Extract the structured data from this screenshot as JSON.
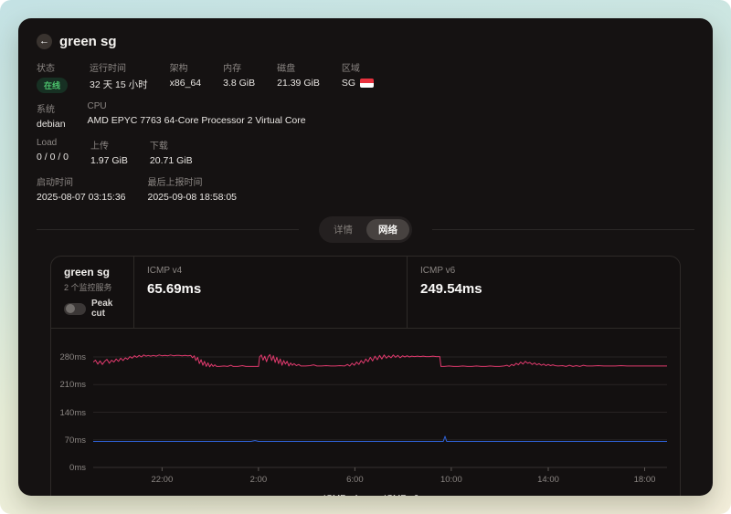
{
  "header": {
    "title": "green sg",
    "back_icon": "←"
  },
  "info_rows": [
    [
      {
        "label": "状态",
        "value": "在线",
        "kind": "badge"
      },
      {
        "label": "运行时间",
        "value": "32 天 15 小时"
      },
      {
        "label": "架构",
        "value": "x86_64"
      },
      {
        "label": "内存",
        "value": "3.8 GiB"
      },
      {
        "label": "磁盘",
        "value": "21.39 GiB"
      },
      {
        "label": "区域",
        "value": "SG",
        "kind": "flag"
      }
    ],
    [
      {
        "label": "系统",
        "value": "debian"
      },
      {
        "label": "CPU",
        "value": "AMD EPYC 7763 64-Core Processor 2 Virtual Core"
      }
    ],
    [
      {
        "label": "Load",
        "value": "0 / 0 / 0"
      },
      {
        "label": "上传",
        "value": "1.97 GiB"
      },
      {
        "label": "下载",
        "value": "20.71 GiB"
      }
    ],
    [
      {
        "label": "启动时间",
        "value": "2025-08-07 03:15:36"
      },
      {
        "label": "最后上报时间",
        "value": "2025-09-08 18:58:05"
      }
    ]
  ],
  "tabs": [
    {
      "label": "详情",
      "active": false
    },
    {
      "label": "网络",
      "active": true
    }
  ],
  "monitor": {
    "name": "green sg",
    "subtitle": "2 个监控服务",
    "peak_label": "Peak cut",
    "peak_on": false,
    "services": [
      {
        "name": "ICMP v4",
        "latency": "65.69ms"
      },
      {
        "name": "ICMP v6",
        "latency": "249.54ms"
      }
    ]
  },
  "chart_data": {
    "type": "line",
    "unit": "ms",
    "grid": true,
    "legend_position": "bottom-center",
    "y_ticks": [
      {
        "label": "0ms",
        "ms": 0
      },
      {
        "label": "70ms",
        "ms": 70
      },
      {
        "label": "140ms",
        "ms": 140
      },
      {
        "label": "210ms",
        "ms": 210
      },
      {
        "label": "280ms",
        "ms": 280
      }
    ],
    "y_top_ms": 315,
    "x_ticks": [
      {
        "label": "22:00",
        "x": 12.0
      },
      {
        "label": "2:00",
        "x": 28.8
      },
      {
        "label": "6:00",
        "x": 45.6
      },
      {
        "label": "10:00",
        "x": 62.4
      },
      {
        "label": "14:00",
        "x": 79.3
      },
      {
        "label": "18:00",
        "x": 96.1
      }
    ],
    "series": [
      {
        "name": "ICMP v4",
        "color": "#2e62d9",
        "avg_label": "65.69ms",
        "points": [
          [
            0,
            66
          ],
          [
            5,
            66
          ],
          [
            10,
            66
          ],
          [
            15,
            66
          ],
          [
            20,
            66
          ],
          [
            25,
            66
          ],
          [
            27.5,
            66
          ],
          [
            28.2,
            68
          ],
          [
            28.8,
            66
          ],
          [
            35,
            66
          ],
          [
            40,
            66
          ],
          [
            45,
            66
          ],
          [
            50,
            66
          ],
          [
            55,
            66
          ],
          [
            60,
            66
          ],
          [
            61,
            66
          ],
          [
            61.3,
            79
          ],
          [
            61.6,
            66
          ],
          [
            65,
            66
          ],
          [
            70,
            66
          ],
          [
            75,
            66
          ],
          [
            80,
            66
          ],
          [
            85,
            66
          ],
          [
            90,
            66
          ],
          [
            95,
            66
          ],
          [
            100,
            66
          ]
        ]
      },
      {
        "name": "ICMP v6",
        "color": "#e13a6e",
        "avg_label": "249.54ms",
        "points": [
          [
            0,
            267
          ],
          [
            0.4,
            272
          ],
          [
            0.8,
            262
          ],
          [
            1.2,
            270
          ],
          [
            1.6,
            261
          ],
          [
            2,
            269
          ],
          [
            2.4,
            274
          ],
          [
            2.8,
            264
          ],
          [
            3.2,
            272
          ],
          [
            3.6,
            267
          ],
          [
            4,
            275
          ],
          [
            4.4,
            269
          ],
          [
            4.8,
            277
          ],
          [
            5.2,
            271
          ],
          [
            5.6,
            278
          ],
          [
            6,
            274
          ],
          [
            6.4,
            281
          ],
          [
            6.8,
            277
          ],
          [
            7.2,
            283
          ],
          [
            7.6,
            279
          ],
          [
            8,
            284
          ],
          [
            8.4,
            280
          ],
          [
            8.8,
            285
          ],
          [
            9.2,
            282
          ],
          [
            9.6,
            284
          ],
          [
            10,
            282
          ],
          [
            10.5,
            284
          ],
          [
            11,
            282
          ],
          [
            11.5,
            285
          ],
          [
            12,
            283
          ],
          [
            12.5,
            284
          ],
          [
            13,
            283
          ],
          [
            13.5,
            285
          ],
          [
            14,
            283
          ],
          [
            14.5,
            284
          ],
          [
            15,
            284
          ],
          [
            15.5,
            283
          ],
          [
            16,
            284
          ],
          [
            16.5,
            283
          ],
          [
            17,
            284
          ],
          [
            17.3,
            278
          ],
          [
            17.6,
            283
          ],
          [
            17.9,
            271
          ],
          [
            18.2,
            279
          ],
          [
            18.5,
            263
          ],
          [
            18.8,
            273
          ],
          [
            19.1,
            259
          ],
          [
            19.4,
            269
          ],
          [
            19.7,
            256
          ],
          [
            20,
            265
          ],
          [
            20.3,
            255
          ],
          [
            20.6,
            262
          ],
          [
            20.9,
            256
          ],
          [
            21.2,
            260
          ],
          [
            21.5,
            256
          ],
          [
            22,
            256
          ],
          [
            22.8,
            257
          ],
          [
            23.4,
            256
          ],
          [
            24,
            259
          ],
          [
            24.4,
            256
          ],
          [
            25.2,
            256
          ],
          [
            26,
            258
          ],
          [
            26.6,
            256
          ],
          [
            27.4,
            256
          ],
          [
            28.2,
            256
          ],
          [
            28.8,
            256
          ],
          [
            29,
            280
          ],
          [
            29.3,
            285
          ],
          [
            29.6,
            272
          ],
          [
            29.9,
            282
          ],
          [
            30.2,
            268
          ],
          [
            30.5,
            281
          ],
          [
            30.8,
            286
          ],
          [
            31.1,
            271
          ],
          [
            31.4,
            283
          ],
          [
            31.7,
            266
          ],
          [
            32,
            279
          ],
          [
            32.3,
            263
          ],
          [
            32.6,
            275
          ],
          [
            32.9,
            259
          ],
          [
            33.2,
            271
          ],
          [
            33.5,
            262
          ],
          [
            33.8,
            269
          ],
          [
            34.1,
            257
          ],
          [
            34.4,
            265
          ],
          [
            34.7,
            259
          ],
          [
            35,
            263
          ],
          [
            35.4,
            258
          ],
          [
            35.8,
            261
          ],
          [
            36.2,
            257
          ],
          [
            37,
            257
          ],
          [
            37.8,
            258
          ],
          [
            38.4,
            260
          ],
          [
            39,
            257
          ],
          [
            39.8,
            257
          ],
          [
            40.6,
            258
          ],
          [
            41.4,
            257
          ],
          [
            42.2,
            257
          ],
          [
            43,
            258
          ],
          [
            43.8,
            257
          ],
          [
            44.3,
            261
          ],
          [
            44.7,
            257
          ],
          [
            45.1,
            264
          ],
          [
            45.5,
            259
          ],
          [
            45.9,
            267
          ],
          [
            46.3,
            261
          ],
          [
            46.7,
            271
          ],
          [
            47.1,
            264
          ],
          [
            47.5,
            275
          ],
          [
            47.9,
            268
          ],
          [
            48.3,
            279
          ],
          [
            48.7,
            270
          ],
          [
            49.1,
            282
          ],
          [
            49.5,
            273
          ],
          [
            49.9,
            284
          ],
          [
            50.3,
            275
          ],
          [
            50.7,
            285
          ],
          [
            51.1,
            277
          ],
          [
            51.5,
            283
          ],
          [
            51.9,
            278
          ],
          [
            52.3,
            285
          ],
          [
            52.7,
            279
          ],
          [
            53.1,
            284
          ],
          [
            53.5,
            278
          ],
          [
            53.9,
            283
          ],
          [
            54.3,
            280
          ],
          [
            54.7,
            283
          ],
          [
            55.1,
            280
          ],
          [
            55.5,
            282
          ],
          [
            56,
            281
          ],
          [
            56.5,
            282
          ],
          [
            57,
            281
          ],
          [
            57.5,
            282
          ],
          [
            58,
            281
          ],
          [
            58.6,
            281
          ],
          [
            59.2,
            282
          ],
          [
            59.8,
            281
          ],
          [
            60.4,
            281
          ],
          [
            60.6,
            256
          ],
          [
            61.2,
            256
          ],
          [
            62,
            257
          ],
          [
            62.8,
            256
          ],
          [
            63.6,
            256
          ],
          [
            64.4,
            257
          ],
          [
            65.2,
            256
          ],
          [
            66,
            256
          ],
          [
            66.8,
            257
          ],
          [
            67.6,
            256
          ],
          [
            68.4,
            256
          ],
          [
            69.2,
            257
          ],
          [
            70,
            256
          ],
          [
            70.8,
            256
          ],
          [
            71.6,
            257
          ],
          [
            72.1,
            259
          ],
          [
            72.5,
            256
          ],
          [
            72.9,
            261
          ],
          [
            73.3,
            258
          ],
          [
            73.7,
            264
          ],
          [
            74.1,
            260
          ],
          [
            74.5,
            267
          ],
          [
            74.9,
            262
          ],
          [
            75.3,
            269
          ],
          [
            75.7,
            264
          ],
          [
            76.1,
            266
          ],
          [
            76.5,
            261
          ],
          [
            76.9,
            265
          ],
          [
            77.3,
            260
          ],
          [
            77.7,
            263
          ],
          [
            78.1,
            259
          ],
          [
            78.5,
            262
          ],
          [
            78.9,
            258
          ],
          [
            79.3,
            261
          ],
          [
            79.7,
            258
          ],
          [
            80.1,
            260
          ],
          [
            80.5,
            258
          ],
          [
            81,
            257
          ],
          [
            81.8,
            258
          ],
          [
            82.4,
            256
          ],
          [
            83,
            259
          ],
          [
            83.6,
            256
          ],
          [
            84.2,
            258
          ],
          [
            84.8,
            256
          ],
          [
            85.4,
            259
          ],
          [
            86,
            257
          ],
          [
            87,
            257
          ],
          [
            88,
            258
          ],
          [
            89,
            257
          ],
          [
            90,
            257
          ],
          [
            91,
            257
          ],
          [
            92,
            258
          ],
          [
            93,
            257
          ],
          [
            94,
            257
          ],
          [
            95,
            257
          ],
          [
            96,
            257
          ],
          [
            97,
            257
          ],
          [
            98,
            257
          ],
          [
            99,
            257
          ],
          [
            100,
            257
          ]
        ]
      }
    ]
  }
}
